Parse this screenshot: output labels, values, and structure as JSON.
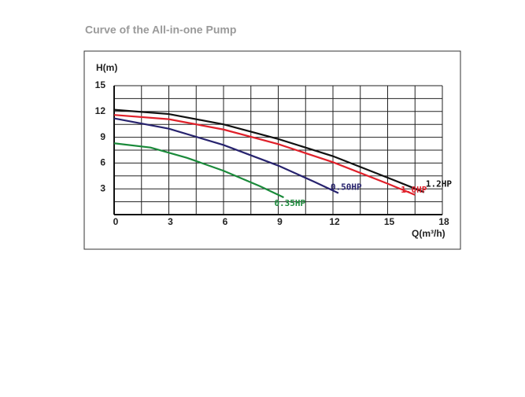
{
  "chart_data": {
    "type": "line",
    "title": "Curve of the All-in-one Pump",
    "ylabel": "H(m)",
    "xlabel": "Q(m³/h)",
    "xlim": [
      0,
      18
    ],
    "ylim": [
      0,
      15
    ],
    "xticks": [
      0,
      3,
      6,
      9,
      12,
      15,
      18
    ],
    "yticks": [
      3,
      6,
      9,
      12,
      15
    ],
    "xgrid": [
      1.5,
      3,
      4.5,
      6,
      7.5,
      9,
      10.5,
      12,
      13.5,
      15,
      16.5,
      18
    ],
    "ygrid": [
      1.5,
      3,
      4.5,
      6,
      7.5,
      9,
      10.5,
      12,
      13.5,
      15
    ],
    "grid": true,
    "series": [
      {
        "name": "1.2HP",
        "color": "#111111",
        "x": [
          0,
          3,
          6,
          9,
          12,
          15,
          17
        ],
        "values": [
          12.2,
          11.7,
          10.5,
          8.8,
          6.8,
          4.3,
          2.6
        ]
      },
      {
        "name": "1.0HP",
        "color": "#e0202a",
        "x": [
          0,
          3,
          6,
          9,
          12,
          15,
          16.5
        ],
        "values": [
          11.6,
          11.1,
          9.9,
          8.2,
          6.1,
          3.6,
          2.3
        ]
      },
      {
        "name": "0.50HP",
        "color": "#27236e",
        "x": [
          0,
          3,
          6,
          9,
          11,
          12.3
        ],
        "values": [
          11.2,
          10.0,
          8.1,
          5.7,
          3.8,
          2.5
        ]
      },
      {
        "name": "0.35HP",
        "color": "#1a8a3a",
        "x": [
          0,
          2,
          4,
          6,
          8,
          9.3
        ],
        "values": [
          8.3,
          7.8,
          6.6,
          5.1,
          3.3,
          2.0
        ]
      }
    ]
  }
}
